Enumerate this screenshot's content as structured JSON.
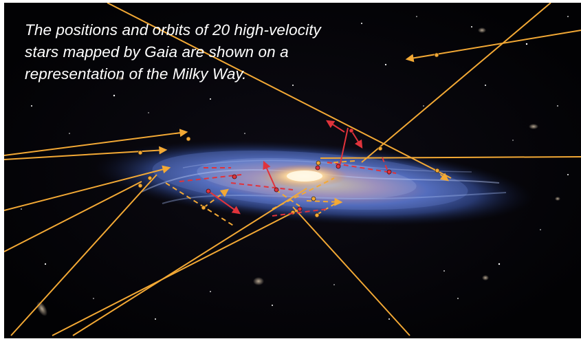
{
  "caption": {
    "text": "The positions and orbits of 20 high-velocity stars mapped by Gaia are shown on a representation of the Milky Way."
  },
  "colors": {
    "background": "#030306",
    "orbit_outgoing": "#f3a935",
    "orbit_incoming": "#e0333b",
    "caption_text": "#ffffff"
  },
  "scene": {
    "subject": "milky-way-galaxy",
    "star_count": 20,
    "star_groups": [
      {
        "group": "outgoing",
        "color": "#f3a935",
        "count": 12
      },
      {
        "group": "incoming",
        "color": "#e0333b",
        "count": 8
      }
    ]
  }
}
